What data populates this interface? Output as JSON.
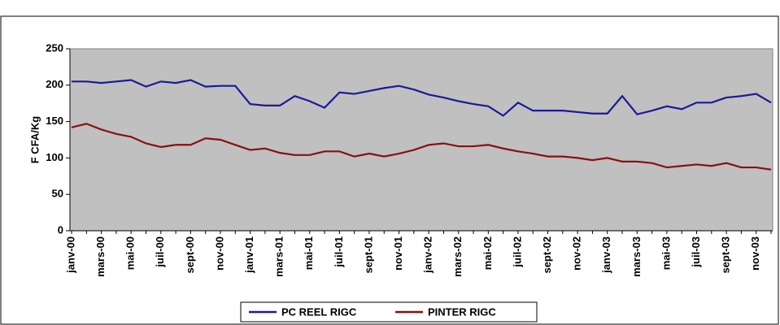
{
  "chart_data": {
    "type": "line",
    "y_label": "F CFA/Kg",
    "categories": [
      "janv-00",
      null,
      "mars-00",
      null,
      "mai-00",
      null,
      "juil-00",
      null,
      "sept-00",
      null,
      "nov-00",
      null,
      "janv-01",
      null,
      "mars-01",
      null,
      "mai-01",
      null,
      "juil-01",
      null,
      "sept-01",
      null,
      "nov-01",
      null,
      "janv-02",
      null,
      "mars-02",
      null,
      "mai-02",
      null,
      "juil-02",
      null,
      "sept-02",
      null,
      "nov-02",
      null,
      "janv-03",
      null,
      "mars-03",
      null,
      "mai-03",
      null,
      "juil-03",
      null,
      "sept-03",
      null,
      "nov-03",
      null
    ],
    "series": [
      {
        "name": "PC REEL RIGC",
        "color": "#1a1a99",
        "values": [
          205,
          205,
          203,
          205,
          207,
          198,
          205,
          203,
          207,
          198,
          199,
          199,
          174,
          172,
          172,
          185,
          178,
          169,
          190,
          188,
          192,
          196,
          199,
          194,
          187,
          183,
          178,
          174,
          171,
          158,
          176,
          165,
          165,
          165,
          163,
          161,
          161,
          185,
          160,
          165,
          171,
          167,
          176,
          176,
          183,
          185,
          188,
          176
        ]
      },
      {
        "name": "PINTER RIGC",
        "color": "#8b0f0f",
        "values": [
          142,
          147,
          139,
          133,
          129,
          120,
          115,
          118,
          118,
          127,
          125,
          118,
          111,
          113,
          107,
          104,
          104,
          109,
          109,
          102,
          106,
          102,
          106,
          111,
          118,
          120,
          116,
          116,
          118,
          113,
          109,
          106,
          102,
          102,
          100,
          97,
          100,
          95,
          95,
          93,
          87,
          89,
          91,
          89,
          93,
          87,
          87,
          84
        ]
      }
    ],
    "ylim": [
      0,
      250
    ],
    "yticks": [
      0,
      50,
      100,
      150,
      200,
      250
    ],
    "legend": "bottom",
    "plot_background": "#c0c0c0"
  }
}
